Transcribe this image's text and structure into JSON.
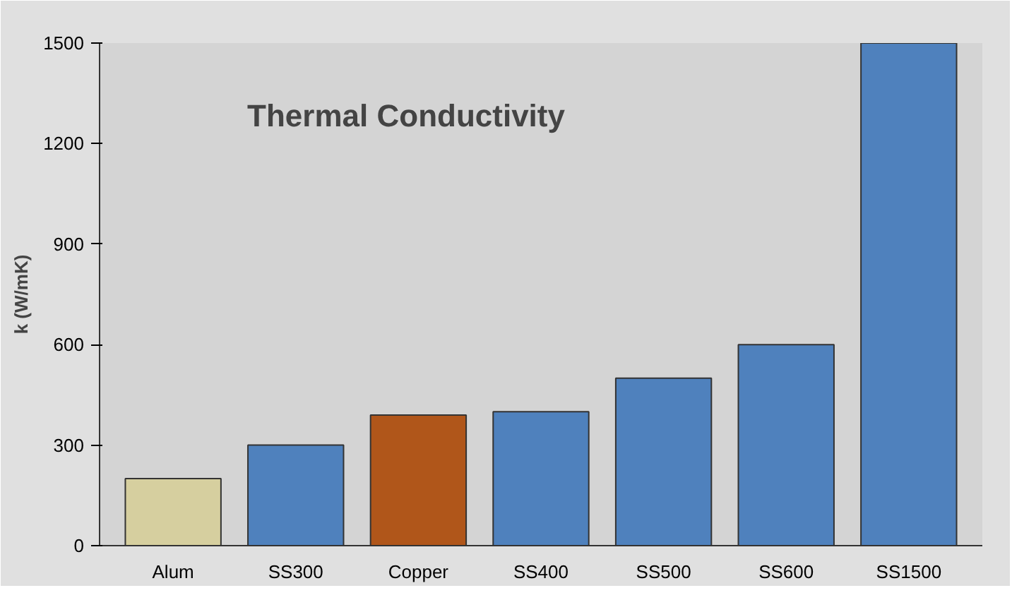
{
  "chart_data": {
    "type": "bar",
    "title": "Thermal Conductivity",
    "ylabel": "k (W/mK)",
    "categories": [
      "Alum",
      "SS300",
      "Copper",
      "SS400",
      "SS500",
      "SS600",
      "SS1500"
    ],
    "values": [
      200,
      300,
      390,
      400,
      500,
      600,
      1500
    ],
    "colors": [
      "#d6cf9f",
      "#4f81bd",
      "#b0561a",
      "#4f81bd",
      "#4f81bd",
      "#4f81bd",
      "#4f81bd"
    ],
    "ylim": [
      0,
      1500
    ],
    "yticks": [
      0,
      300,
      600,
      900,
      1200,
      1500
    ],
    "grid": false
  }
}
